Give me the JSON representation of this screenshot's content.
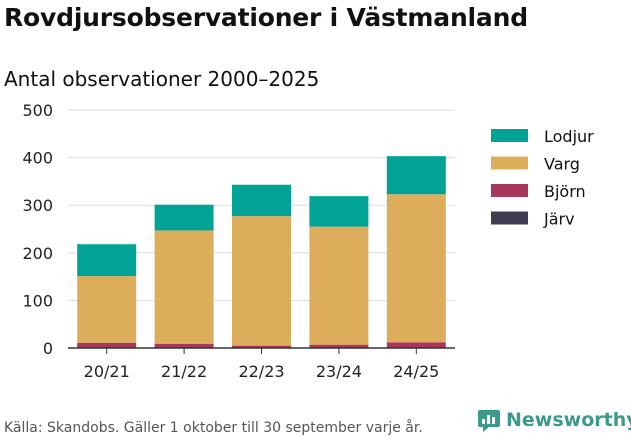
{
  "header": {
    "title": "Rovdjursobservationer i Västmanland",
    "subtitle": "Antal observationer 2000–2025"
  },
  "footer": {
    "source": "Källa: Skandobs. Gäller 1 oktober till 30 september varje år.",
    "brand": "Newsworthy"
  },
  "colors": {
    "Lodjur": "#00a396",
    "Varg": "#dcae5c",
    "Björn": "#a8385b",
    "Järv": "#3e3e50",
    "grid": "#dddddd",
    "axis": "#333333",
    "brand": "#3c9a8c"
  },
  "chart_data": {
    "type": "bar",
    "stacked": true,
    "title": "Rovdjursobservationer i Västmanland",
    "subtitle": "Antal observationer 2000–2025",
    "categories": [
      "20/21",
      "21/22",
      "22/23",
      "23/24",
      "24/25"
    ],
    "series": [
      {
        "name": "Järv",
        "values": [
          0,
          0,
          0,
          0,
          0
        ]
      },
      {
        "name": "Björn",
        "values": [
          11,
          9,
          5,
          7,
          12
        ]
      },
      {
        "name": "Varg",
        "values": [
          140,
          238,
          272,
          248,
          311
        ]
      },
      {
        "name": "Lodjur",
        "values": [
          67,
          54,
          66,
          64,
          80
        ]
      }
    ],
    "legend_order": [
      "Lodjur",
      "Varg",
      "Björn",
      "Järv"
    ],
    "legend_position": "right",
    "xlabel": "",
    "ylabel": "",
    "ylim": [
      0,
      500
    ],
    "yticks": [
      0,
      100,
      200,
      300,
      400,
      500
    ],
    "grid": true
  }
}
